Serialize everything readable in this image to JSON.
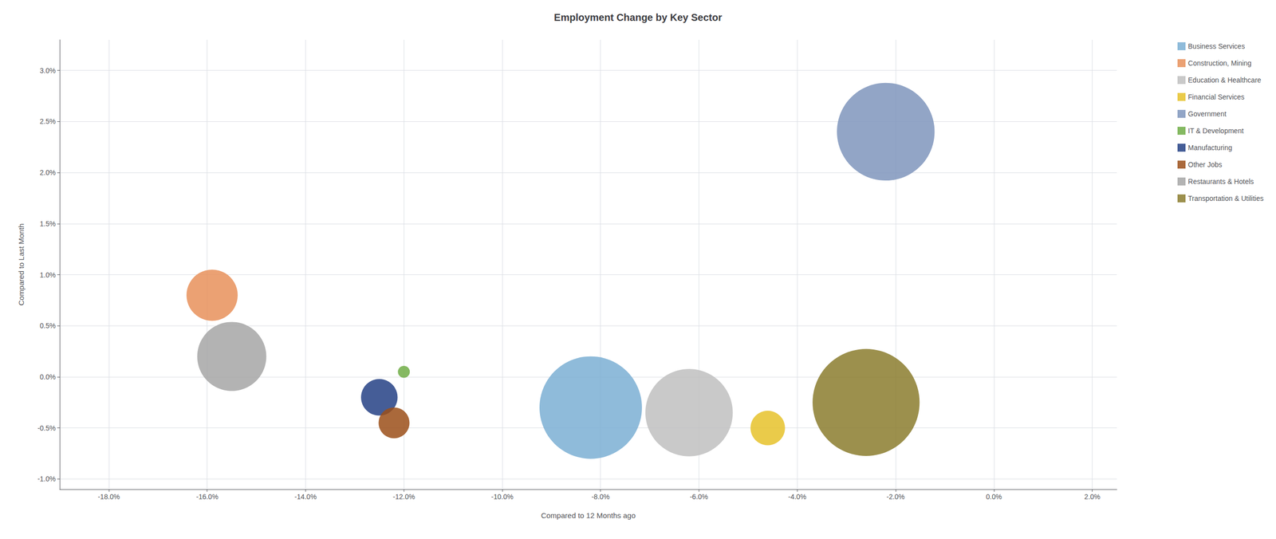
{
  "chart_data": {
    "type": "scatter",
    "title": "Employment Change by Key Sector",
    "xlabel": "Compared to 12 Months ago",
    "ylabel": "Compared to Last Month",
    "xlim": [
      -0.19,
      0.025
    ],
    "ylim": [
      -0.011,
      0.033
    ],
    "xticks": [
      {
        "value": -0.18,
        "label": "-18.0%"
      },
      {
        "value": -0.16,
        "label": "-16.0%"
      },
      {
        "value": -0.14,
        "label": "-14.0%"
      },
      {
        "value": -0.12,
        "label": "-12.0%"
      },
      {
        "value": -0.1,
        "label": "-10.0%"
      },
      {
        "value": -0.08,
        "label": "-8.0%"
      },
      {
        "value": -0.06,
        "label": "-6.0%"
      },
      {
        "value": -0.04,
        "label": "-4.0%"
      },
      {
        "value": -0.02,
        "label": "-2.0%"
      },
      {
        "value": 0.0,
        "label": "0.0%"
      },
      {
        "value": 0.02,
        "label": "2.0%"
      }
    ],
    "yticks": [
      {
        "value": -0.01,
        "label": "-1.0%"
      },
      {
        "value": -0.005,
        "label": "-0.5%"
      },
      {
        "value": 0.0,
        "label": "0.0%"
      },
      {
        "value": 0.005,
        "label": "0.5%"
      },
      {
        "value": 0.01,
        "label": "1.0%"
      },
      {
        "value": 0.015,
        "label": "1.5%"
      },
      {
        "value": 0.02,
        "label": "2.0%"
      },
      {
        "value": 0.025,
        "label": "2.5%"
      },
      {
        "value": 0.03,
        "label": "3.0%"
      }
    ],
    "grid": true,
    "legend": "upper right",
    "series": [
      {
        "name": "Business Services",
        "color": "#7BAFD4",
        "x": [
          -0.082
        ],
        "values": [
          -0.003
        ],
        "size": [
          22000
        ]
      },
      {
        "name": "Construction, Mining",
        "color": "#E8915A",
        "x": [
          -0.159
        ],
        "values": [
          0.008
        ],
        "size": [
          5500
        ]
      },
      {
        "name": "Education & Healthcare",
        "color": "#BFBFBF",
        "x": [
          -0.062
        ],
        "values": [
          -0.0035
        ],
        "size": [
          16000
        ]
      },
      {
        "name": "Financial Services",
        "color": "#E6C22A",
        "x": [
          -0.046
        ],
        "values": [
          -0.005
        ],
        "size": [
          2500
        ]
      },
      {
        "name": "Government",
        "color": "#7F95BC",
        "x": [
          -0.022
        ],
        "values": [
          0.024
        ],
        "size": [
          20000
        ]
      },
      {
        "name": "IT & Development",
        "color": "#70AD47",
        "x": [
          -0.12
        ],
        "values": [
          0.0005
        ],
        "size": [
          300
        ]
      },
      {
        "name": "Manufacturing",
        "color": "#244185",
        "x": [
          -0.125
        ],
        "values": [
          -0.002
        ],
        "size": [
          2800
        ]
      },
      {
        "name": "Other Jobs",
        "color": "#9B4F19",
        "x": [
          -0.122
        ],
        "values": [
          -0.0045
        ],
        "size": [
          2000
        ]
      },
      {
        "name": "Restaurants & Hotels",
        "color": "#A6A6A6",
        "x": [
          -0.155
        ],
        "values": [
          0.002
        ],
        "size": [
          10000
        ]
      },
      {
        "name": "Transportation & Utilities",
        "color": "#8B7D2E",
        "x": [
          -0.026
        ],
        "values": [
          -0.0025
        ],
        "size": [
          24000
        ]
      }
    ]
  }
}
